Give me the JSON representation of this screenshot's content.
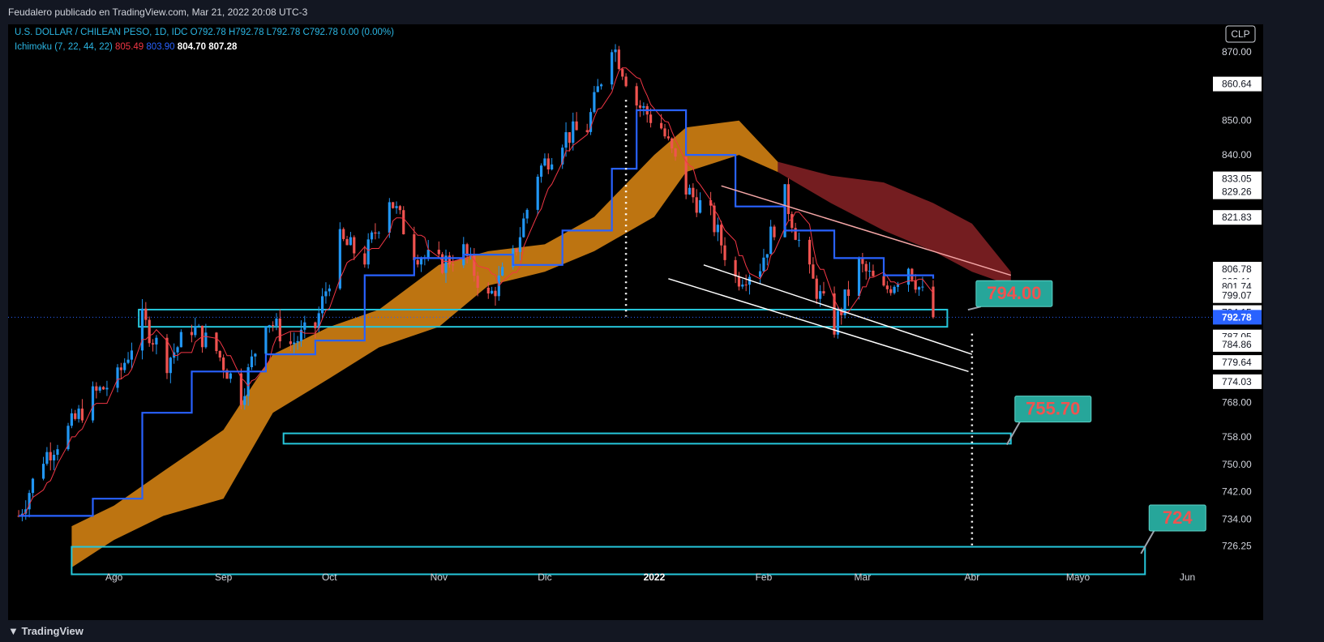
{
  "header": {
    "published": "Feudalero publicado en TradingView.com, Mar 21, 2022 20:08 UTC-3"
  },
  "legend": {
    "symbol": "U.S. DOLLAR / CHILEAN PESO, 1D, IDC",
    "open": "O792.78",
    "high": "H792.78",
    "low": "L792.78",
    "close": "C792.78",
    "change": "0.00 (0.00%)",
    "ichimoku_name": "Ichimoku (7, 22, 44, 22)",
    "ichimoku_v1": "805.49",
    "ichimoku_v2": "803.90",
    "ichimoku_v3": "804.70",
    "ichimoku_v4": "807.28"
  },
  "footer": {
    "brand": "TradingView"
  },
  "colors": {
    "bull": "#2196f3",
    "bear": "#ef5350",
    "kijun": "#2962ff",
    "tenkan": "#f23645",
    "cloud_bull": "#c77a12",
    "cloud_bear": "#7a1f22",
    "box": "#26c6da",
    "label_bg": "#26a69a"
  },
  "chart_data": {
    "type": "candlestick",
    "currency": "CLP",
    "ylim": [
      720,
      878
    ],
    "y_ticks": [
      "870.00",
      "850.00",
      "840.00",
      "768.00",
      "758.00",
      "750.00",
      "742.00",
      "734.00",
      "726.25"
    ],
    "y_markers": [
      "860.64",
      "833.05",
      "829.26",
      "821.83",
      "806.78",
      "803.11",
      "801.74",
      "799.07",
      "794.15",
      "787.05",
      "784.86",
      "779.64",
      "774.03"
    ],
    "last_price": "792.78",
    "x_ticks": [
      {
        "label": "Ago",
        "d": "2021-08-01"
      },
      {
        "label": "Sep",
        "d": "2021-09-01"
      },
      {
        "label": "Oct",
        "d": "2021-10-01"
      },
      {
        "label": "Nov",
        "d": "2021-11-01"
      },
      {
        "label": "Dic",
        "d": "2021-12-01"
      },
      {
        "label": "2022",
        "d": "2022-01-01",
        "bold": true
      },
      {
        "label": "Feb",
        "d": "2022-02-01"
      },
      {
        "label": "Mar",
        "d": "2022-03-01"
      },
      {
        "label": "Abr",
        "d": "2022-04-01"
      },
      {
        "label": "Mayo",
        "d": "2022-05-01"
      },
      {
        "label": "Jun",
        "d": "2022-06-01"
      }
    ],
    "close_path": [
      [
        "2021-07-05",
        735
      ],
      [
        "2021-07-12",
        752
      ],
      [
        "2021-07-19",
        760
      ],
      [
        "2021-07-26",
        770
      ],
      [
        "2021-08-02",
        775
      ],
      [
        "2021-08-09",
        792
      ],
      [
        "2021-08-16",
        780
      ],
      [
        "2021-08-23",
        790
      ],
      [
        "2021-08-30",
        783
      ],
      [
        "2021-09-06",
        770
      ],
      [
        "2021-09-13",
        793
      ],
      [
        "2021-09-20",
        785
      ],
      [
        "2021-09-27",
        790
      ],
      [
        "2021-10-04",
        815
      ],
      [
        "2021-10-11",
        810
      ],
      [
        "2021-10-18",
        828
      ],
      [
        "2021-10-25",
        812
      ],
      [
        "2021-11-01",
        808
      ],
      [
        "2021-11-08",
        812
      ],
      [
        "2021-11-15",
        798
      ],
      [
        "2021-11-22",
        810
      ],
      [
        "2021-11-29",
        835
      ],
      [
        "2021-12-06",
        845
      ],
      [
        "2021-12-13",
        848
      ],
      [
        "2021-12-20",
        873
      ],
      [
        "2021-12-27",
        855
      ],
      [
        "2022-01-03",
        848
      ],
      [
        "2022-01-10",
        830
      ],
      [
        "2022-01-17",
        822
      ],
      [
        "2022-01-24",
        804
      ],
      [
        "2022-01-31",
        808
      ],
      [
        "2022-02-07",
        828
      ],
      [
        "2022-02-14",
        805
      ],
      [
        "2022-02-21",
        790
      ],
      [
        "2022-02-28",
        808
      ],
      [
        "2022-03-07",
        800
      ],
      [
        "2022-03-14",
        808
      ],
      [
        "2022-03-21",
        792.78
      ]
    ],
    "kijun_path": [
      [
        "2021-07-05",
        735
      ],
      [
        "2021-07-26",
        740
      ],
      [
        "2021-08-09",
        765
      ],
      [
        "2021-08-23",
        777
      ],
      [
        "2021-09-13",
        782
      ],
      [
        "2021-09-27",
        786
      ],
      [
        "2021-10-11",
        805
      ],
      [
        "2021-10-25",
        810
      ],
      [
        "2021-11-08",
        811
      ],
      [
        "2021-11-22",
        808
      ],
      [
        "2021-12-06",
        818
      ],
      [
        "2021-12-20",
        836
      ],
      [
        "2021-12-27",
        853
      ],
      [
        "2022-01-10",
        840
      ],
      [
        "2022-01-24",
        825
      ],
      [
        "2022-02-07",
        818
      ],
      [
        "2022-02-21",
        810
      ],
      [
        "2022-03-07",
        805
      ],
      [
        "2022-03-21",
        804
      ]
    ],
    "cloud": [
      [
        "2021-07-20",
        720,
        732
      ],
      [
        "2021-08-01",
        728,
        738
      ],
      [
        "2021-08-15",
        735,
        748
      ],
      [
        "2021-09-01",
        740,
        760
      ],
      [
        "2021-09-15",
        765,
        782
      ],
      [
        "2021-10-01",
        775,
        790
      ],
      [
        "2021-10-15",
        784,
        795
      ],
      [
        "2021-11-01",
        790,
        808
      ],
      [
        "2021-11-15",
        802,
        812
      ],
      [
        "2021-12-01",
        806,
        814
      ],
      [
        "2021-12-15",
        812,
        822
      ],
      [
        "2022-01-01",
        822,
        840
      ],
      [
        "2022-01-10",
        835,
        848
      ],
      [
        "2022-01-25",
        840,
        850
      ],
      [
        "2022-02-05",
        835,
        838
      ],
      [
        "2022-02-20",
        826,
        834
      ],
      [
        "2022-03-07",
        818,
        832
      ],
      [
        "2022-03-21",
        812,
        826
      ],
      [
        "2022-04-01",
        806,
        820
      ],
      [
        "2022-04-12",
        802,
        806
      ]
    ],
    "zones": [
      {
        "from": "2021-08-08",
        "to": "2022-03-25",
        "lo": 790,
        "hi": 795
      },
      {
        "from": "2021-09-18",
        "to": "2022-04-12",
        "lo": 756,
        "hi": 759
      },
      {
        "from": "2021-07-20",
        "to": "2022-05-20",
        "lo": 718,
        "hi": 726
      }
    ],
    "channel": [
      {
        "from": [
          "2022-01-20",
          831
        ],
        "to": [
          "2022-04-12",
          805
        ]
      },
      {
        "from": [
          "2022-01-15",
          808
        ],
        "to": [
          "2022-04-01",
          782
        ]
      },
      {
        "from": [
          "2022-01-05",
          804
        ],
        "to": [
          "2022-03-31",
          777
        ]
      }
    ],
    "annotations": [
      {
        "text": "794.00",
        "price": 794.0,
        "d": "2022-04-01"
      },
      {
        "text": "755.70",
        "price": 755.7,
        "d": "2022-04-12"
      },
      {
        "text": "724",
        "price": 724,
        "d": "2022-05-20"
      }
    ]
  }
}
